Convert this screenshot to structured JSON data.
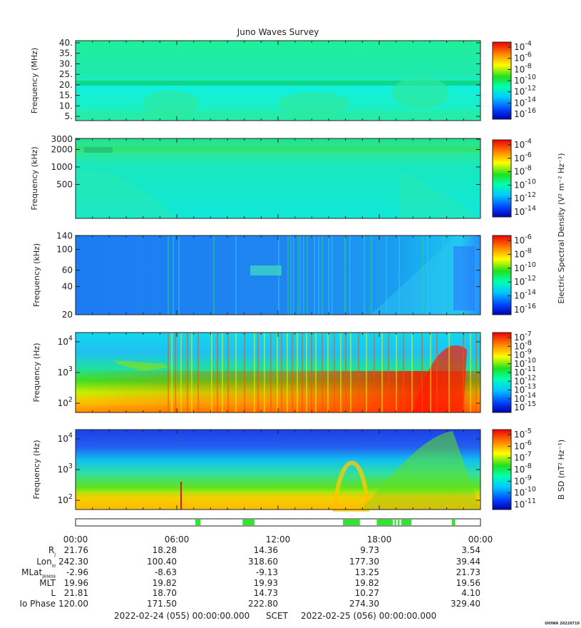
{
  "title": "Juno Waves Survey",
  "credit": "UIOWA 20220710",
  "colors": {
    "frame": "#222222",
    "tick": "#222222"
  },
  "chart_data": [
    {
      "type": "heatmap",
      "panel": "spectrogram-1",
      "ylabel": "Frequency (MHz)",
      "yticks": [
        "40.",
        "35.",
        "30.",
        "25.",
        "20.",
        "15.",
        "10.",
        "5."
      ],
      "ylim": [
        3,
        41
      ],
      "colorbar_ticks": [
        {
          "b": "10",
          "e": "-4"
        },
        {
          "b": "10",
          "e": "-6"
        },
        {
          "b": "10",
          "e": "-8"
        },
        {
          "b": "10",
          "e": "-10"
        },
        {
          "b": "10",
          "e": "-12"
        },
        {
          "b": "10",
          "e": "-14"
        },
        {
          "b": "10",
          "e": "-16"
        }
      ]
    },
    {
      "type": "heatmap",
      "panel": "spectrogram-2",
      "ylabel": "Frequency (kHz)",
      "yticks": [
        "3000",
        "2000",
        "1000",
        "500"
      ],
      "ylim": [
        130,
        3100
      ],
      "colorbar_ticks": [
        {
          "b": "10",
          "e": "-4"
        },
        {
          "b": "10",
          "e": "-6"
        },
        {
          "b": "10",
          "e": "-8"
        },
        {
          "b": "10",
          "e": "-10"
        },
        {
          "b": "10",
          "e": "-12"
        },
        {
          "b": "10",
          "e": "-14"
        }
      ],
      "colorbar_label": "Electric Spectral Density (V² m⁻² Hz⁻¹)"
    },
    {
      "type": "heatmap",
      "panel": "spectrogram-3",
      "ylabel": "Frequency (kHz)",
      "yticks": [
        "140",
        "100",
        "60",
        "40",
        "20"
      ],
      "ylim": [
        20,
        141
      ],
      "colorbar_ticks": [
        {
          "b": "10",
          "e": "-6"
        },
        {
          "b": "10",
          "e": "-8"
        },
        {
          "b": "10",
          "e": "-10"
        },
        {
          "b": "10",
          "e": "-12"
        },
        {
          "b": "10",
          "e": "-14"
        },
        {
          "b": "10",
          "e": "-16"
        }
      ]
    },
    {
      "type": "heatmap",
      "panel": "spectrogram-4",
      "ylabel": "Frequency (Hz)",
      "yticks": [
        {
          "b": "10",
          "e": "4"
        },
        {
          "b": "10",
          "e": "3"
        },
        {
          "b": "10",
          "e": "2"
        }
      ],
      "ylim": [
        50,
        20000
      ],
      "colorbar_ticks": [
        {
          "b": "10",
          "e": "-7"
        },
        {
          "b": "10",
          "e": "-8"
        },
        {
          "b": "10",
          "e": "-9"
        },
        {
          "b": "10",
          "e": "-10"
        },
        {
          "b": "10",
          "e": "-11"
        },
        {
          "b": "10",
          "e": "-12"
        },
        {
          "b": "10",
          "e": "-13"
        },
        {
          "b": "10",
          "e": "-14"
        },
        {
          "b": "10",
          "e": "-15"
        }
      ]
    },
    {
      "type": "heatmap",
      "panel": "spectrogram-5",
      "ylabel": "Frequency (Hz)",
      "yticks": [
        {
          "b": "10",
          "e": "4"
        },
        {
          "b": "10",
          "e": "3"
        },
        {
          "b": "10",
          "e": "2"
        }
      ],
      "ylim": [
        50,
        20000
      ],
      "colorbar_ticks": [
        {
          "b": "10",
          "e": "-5"
        },
        {
          "b": "10",
          "e": "-6"
        },
        {
          "b": "10",
          "e": "-7"
        },
        {
          "b": "10",
          "e": "-8"
        },
        {
          "b": "10",
          "e": "-9"
        },
        {
          "b": "10",
          "e": "-10"
        },
        {
          "b": "10",
          "e": "-11"
        }
      ],
      "colorbar_label": "B SD (nT² Hz⁻¹)"
    }
  ],
  "status_bar": {
    "segments_hours": [
      [
        7.1,
        7.4
      ],
      [
        9.9,
        10.6
      ],
      [
        15.85,
        16.85
      ],
      [
        17.85,
        18.8
      ],
      [
        18.9,
        19.0
      ],
      [
        19.1,
        19.2
      ],
      [
        19.3,
        19.9
      ],
      [
        22.3,
        22.5
      ]
    ],
    "color": "#2fe52f"
  },
  "xaxis": {
    "ticks": [
      "00:00",
      "06:00",
      "12:00",
      "18:00",
      "00:00"
    ],
    "rows": [
      {
        "label": "R",
        "sub": "J",
        "values": [
          "21.76",
          "18.28",
          "14.36",
          "9.73",
          "3.54"
        ]
      },
      {
        "label": "Lon",
        "sub": "III",
        "values": [
          "242.30",
          "100.40",
          "318.60",
          "177.30",
          "39.44"
        ]
      },
      {
        "label": "MLat",
        "sub": "JRM09",
        "values": [
          "-2.96",
          "-8.63",
          "-9.13",
          "13.25",
          "21.73"
        ]
      },
      {
        "label": "MLT",
        "sub": "",
        "values": [
          "19.96",
          "19.82",
          "19.93",
          "19.82",
          "19.56"
        ]
      },
      {
        "label": "L",
        "sub": "",
        "values": [
          "21.81",
          "18.70",
          "14.73",
          "10.27",
          "4.10"
        ]
      },
      {
        "label": "Io Phase",
        "sub": "",
        "values": [
          "120.00",
          "171.50",
          "222.80",
          "274.30",
          "329.40"
        ]
      }
    ],
    "time_range_start": "2022-02-24 (055) 00:00:00.000",
    "time_range_label": "SCET",
    "time_range_end": "2022-02-25 (056) 00:00:00.000"
  }
}
